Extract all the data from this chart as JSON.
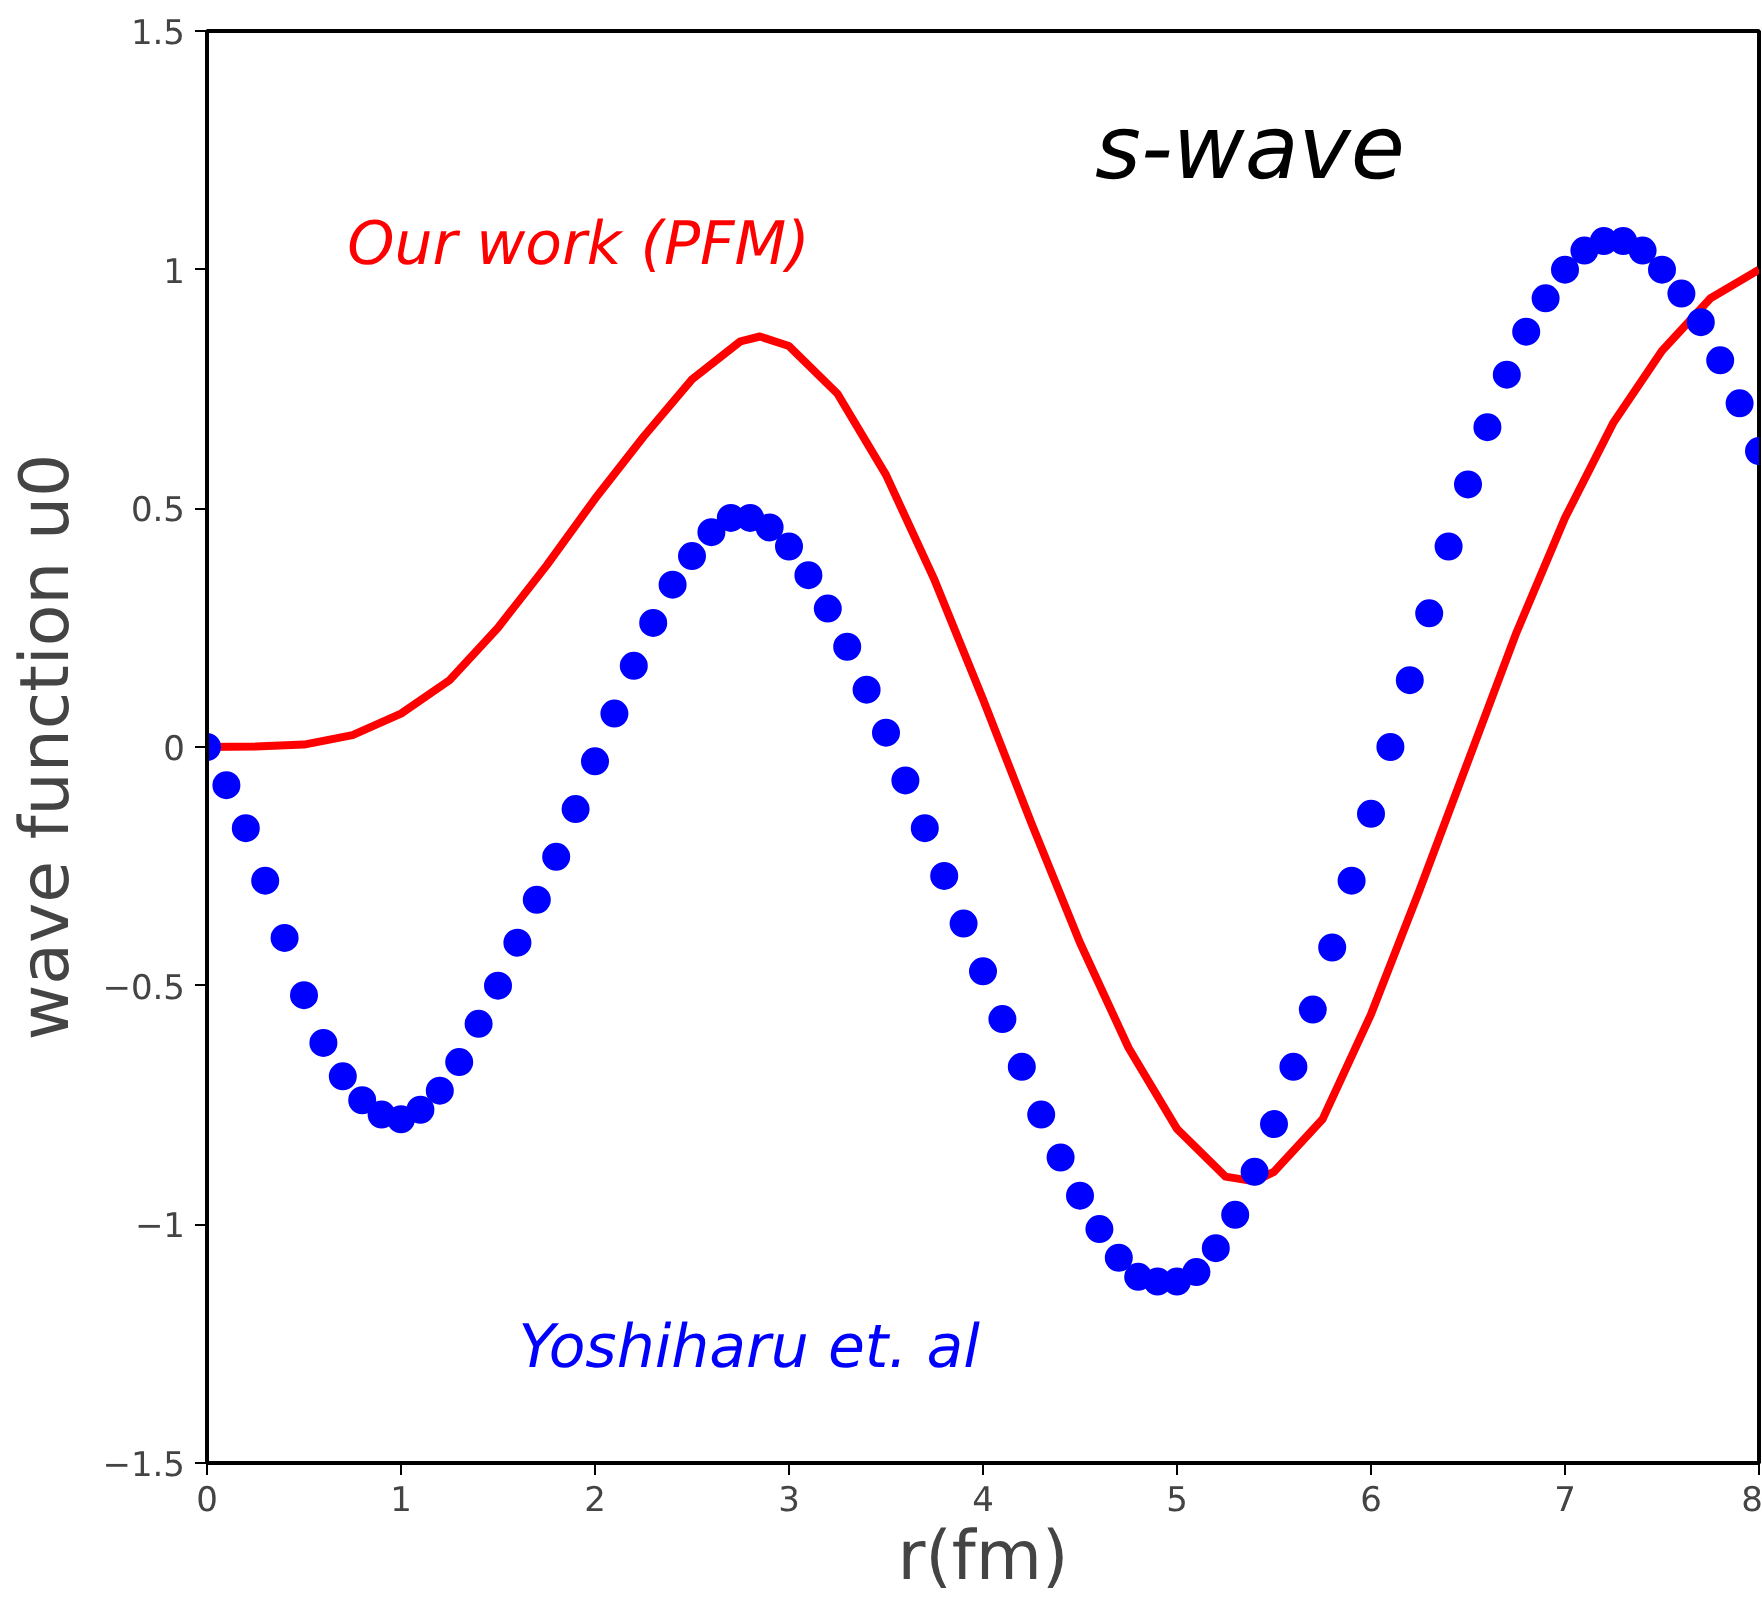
{
  "chart_data": {
    "type": "line",
    "title": "s-wave",
    "xlabel": "r(fm)",
    "ylabel": "wave function u0",
    "xlim": [
      0,
      8
    ],
    "ylim": [
      -1.5,
      1.5
    ],
    "xticks": [
      0,
      1,
      2,
      3,
      4,
      5,
      6,
      7,
      8
    ],
    "yticks": [
      {
        "value": -1.5,
        "label": "−1.5"
      },
      {
        "value": -1,
        "label": "−1"
      },
      {
        "value": -0.5,
        "label": "−0.5"
      },
      0,
      0.5,
      1,
      1.5
    ],
    "grid": false,
    "series": [
      {
        "name": "Our work (PFM)",
        "color": "#ff0000",
        "line_style": "solid",
        "marker": "none",
        "x": [
          0,
          0.25,
          0.5,
          0.75,
          1,
          1.25,
          1.5,
          1.75,
          2,
          2.25,
          2.5,
          2.75,
          2.85,
          3,
          3.25,
          3.5,
          3.75,
          4,
          4.25,
          4.5,
          4.75,
          5,
          5.25,
          5.4,
          5.5,
          5.75,
          6,
          6.25,
          6.5,
          6.75,
          7,
          7.25,
          7.5,
          7.75,
          8
        ],
        "values": [
          0,
          0.001,
          0.005,
          0.025,
          0.07,
          0.14,
          0.25,
          0.38,
          0.52,
          0.65,
          0.77,
          0.85,
          0.86,
          0.84,
          0.74,
          0.57,
          0.35,
          0.1,
          -0.16,
          -0.41,
          -0.63,
          -0.8,
          -0.9,
          -0.91,
          -0.89,
          -0.78,
          -0.56,
          -0.3,
          -0.03,
          0.24,
          0.48,
          0.68,
          0.83,
          0.94,
          1.0
        ]
      },
      {
        "name": "Yoshiharu et. al",
        "type": "scatter",
        "color": "#0000ff",
        "marker": "circle",
        "x": [
          0,
          0.1,
          0.2,
          0.3,
          0.4,
          0.5,
          0.6,
          0.7,
          0.8,
          0.9,
          1.0,
          1.1,
          1.2,
          1.3,
          1.4,
          1.5,
          1.6,
          1.7,
          1.8,
          1.9,
          2.0,
          2.1,
          2.2,
          2.3,
          2.4,
          2.5,
          2.6,
          2.7,
          2.8,
          2.9,
          3.0,
          3.1,
          3.2,
          3.3,
          3.4,
          3.5,
          3.6,
          3.7,
          3.8,
          3.9,
          4.0,
          4.1,
          4.2,
          4.3,
          4.4,
          4.5,
          4.6,
          4.7,
          4.8,
          4.9,
          5.0,
          5.1,
          5.2,
          5.3,
          5.4,
          5.5,
          5.6,
          5.7,
          5.8,
          5.9,
          6.0,
          6.1,
          6.2,
          6.3,
          6.4,
          6.5,
          6.6,
          6.7,
          6.8,
          6.9,
          7.0,
          7.1,
          7.2,
          7.3,
          7.4,
          7.5,
          7.6,
          7.7,
          7.8,
          7.9,
          8.0
        ],
        "values": [
          0,
          -0.08,
          -0.17,
          -0.28,
          -0.4,
          -0.52,
          -0.62,
          -0.69,
          -0.74,
          -0.77,
          -0.78,
          -0.76,
          -0.72,
          -0.66,
          -0.58,
          -0.5,
          -0.41,
          -0.32,
          -0.23,
          -0.13,
          -0.03,
          0.07,
          0.17,
          0.26,
          0.34,
          0.4,
          0.45,
          0.48,
          0.48,
          0.46,
          0.42,
          0.36,
          0.29,
          0.21,
          0.12,
          0.03,
          -0.07,
          -0.17,
          -0.27,
          -0.37,
          -0.47,
          -0.57,
          -0.67,
          -0.77,
          -0.86,
          -0.94,
          -1.01,
          -1.07,
          -1.11,
          -1.12,
          -1.12,
          -1.1,
          -1.05,
          -0.98,
          -0.89,
          -0.79,
          -0.67,
          -0.55,
          -0.42,
          -0.28,
          -0.14,
          0.0,
          0.14,
          0.28,
          0.42,
          0.55,
          0.67,
          0.78,
          0.87,
          0.94,
          1.0,
          1.04,
          1.06,
          1.06,
          1.04,
          1.0,
          0.95,
          0.89,
          0.81,
          0.72,
          0.62
        ]
      }
    ]
  }
}
